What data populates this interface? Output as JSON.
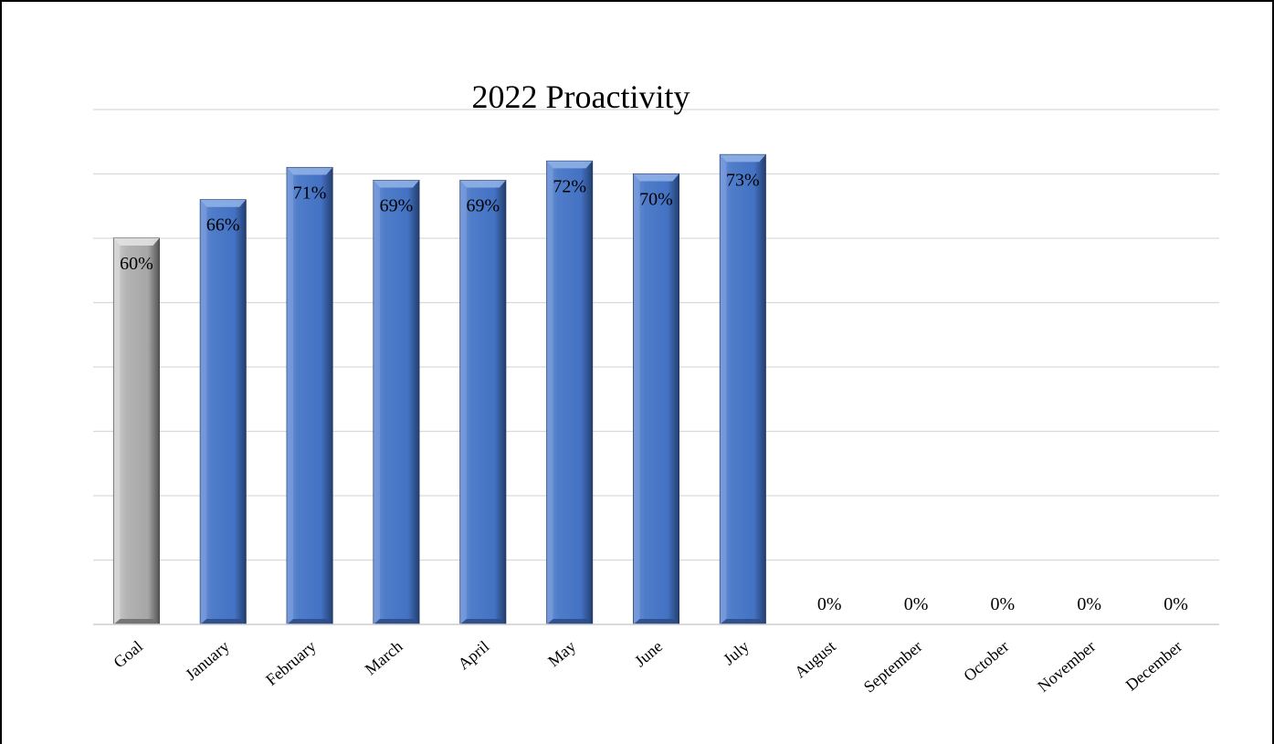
{
  "chart_data": {
    "type": "bar",
    "title": "2022 Proactivity",
    "xlabel": "",
    "ylabel": "",
    "ylim": [
      0,
      80
    ],
    "grid": true,
    "categories": [
      "Goal",
      "January",
      "February",
      "March",
      "April",
      "May",
      "June",
      "July",
      "August",
      "September",
      "October",
      "November",
      "December"
    ],
    "values": [
      60,
      66,
      71,
      69,
      69,
      72,
      70,
      73,
      0,
      0,
      0,
      0,
      0
    ],
    "data_labels": [
      "60%",
      "66%",
      "71%",
      "69%",
      "69%",
      "72%",
      "70%",
      "73%",
      "0%",
      "0%",
      "0%",
      "0%",
      "0%"
    ],
    "colors": {
      "goal_bar": "#a6a6a6",
      "month_bar": "#4472c4",
      "gridline": "#d9d9d9"
    }
  }
}
